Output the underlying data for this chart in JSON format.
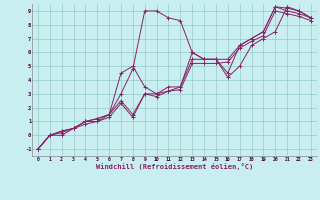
{
  "xlabel": "Windchill (Refroidissement éolien,°C)",
  "bg_color": "#c8eef0",
  "grid_color": "#9dcfcf",
  "line_color": "#882266",
  "xlim": [
    -0.5,
    23.5
  ],
  "ylim": [
    -1.5,
    9.5
  ],
  "xticks": [
    0,
    1,
    2,
    3,
    4,
    5,
    6,
    7,
    8,
    9,
    10,
    11,
    12,
    13,
    14,
    15,
    16,
    17,
    18,
    19,
    20,
    21,
    22,
    23
  ],
  "yticks": [
    -1,
    0,
    1,
    2,
    3,
    4,
    5,
    6,
    7,
    8,
    9
  ],
  "lines": [
    {
      "x": [
        0,
        1,
        2,
        3,
        4,
        5,
        6,
        7,
        8,
        9,
        10,
        11,
        12,
        13,
        14,
        15,
        16,
        17,
        18,
        19,
        20,
        21,
        22,
        23
      ],
      "y": [
        -1,
        0,
        0,
        0.5,
        1,
        1,
        1.5,
        3,
        4.8,
        9,
        9,
        8.5,
        8.3,
        6,
        5.5,
        5.5,
        4.2,
        5,
        6.5,
        7,
        7.5,
        9.3,
        9,
        8.5
      ]
    },
    {
      "x": [
        0,
        1,
        2,
        3,
        4,
        5,
        6,
        7,
        8,
        9,
        10,
        11,
        12,
        13,
        14,
        15,
        16,
        17,
        18,
        19,
        20,
        21,
        22,
        23
      ],
      "y": [
        -1,
        0,
        0.3,
        0.5,
        1,
        1.2,
        1.5,
        2.5,
        1.5,
        3,
        3,
        3.5,
        3.5,
        5.5,
        5.5,
        5.5,
        5.5,
        6.5,
        7,
        7.5,
        9.3,
        9,
        8.8,
        8.5
      ]
    },
    {
      "x": [
        0,
        1,
        2,
        3,
        4,
        5,
        6,
        7,
        8,
        9,
        10,
        11,
        12,
        13,
        14,
        15,
        16,
        17,
        18,
        19,
        20,
        21,
        22,
        23
      ],
      "y": [
        -1,
        0,
        0.2,
        0.5,
        0.8,
        1.0,
        1.3,
        2.3,
        1.3,
        3,
        2.8,
        3.2,
        3.3,
        5.2,
        5.2,
        5.2,
        5.3,
        6.3,
        6.8,
        7.2,
        9.0,
        8.8,
        8.6,
        8.3
      ]
    },
    {
      "x": [
        0,
        1,
        2,
        3,
        4,
        5,
        6,
        7,
        8,
        9,
        10,
        11,
        12,
        13,
        14,
        15,
        16,
        17,
        18,
        19,
        20,
        21,
        22,
        23
      ],
      "y": [
        -1,
        0,
        0.3,
        0.5,
        1,
        1.2,
        1.5,
        4.5,
        5,
        3.5,
        3,
        3.2,
        3.5,
        6,
        5.5,
        5.5,
        4.5,
        6.5,
        7,
        7.5,
        9.3,
        9.2,
        9,
        8.5
      ]
    }
  ]
}
